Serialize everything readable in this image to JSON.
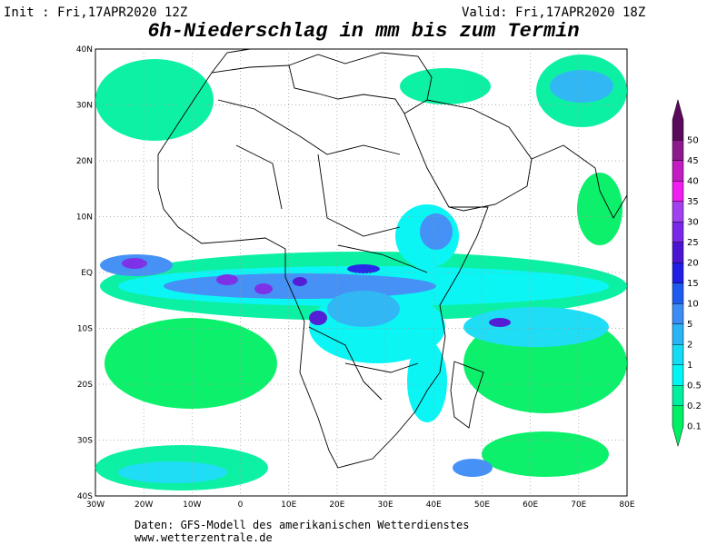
{
  "header": {
    "init": "Init : Fri,17APR2020 12Z",
    "valid": "Valid: Fri,17APR2020 18Z",
    "title": "6h-Niederschlag in mm bis zum Termin"
  },
  "map": {
    "lon_labels": [
      "30W",
      "20W",
      "10W",
      "0",
      "10E",
      "20E",
      "30E",
      "40E",
      "50E",
      "60E",
      "70E",
      "80E"
    ],
    "lat_labels": [
      "40N",
      "30N",
      "20N",
      "10N",
      "EQ",
      "10S",
      "20S",
      "30S",
      "40S"
    ]
  },
  "legend": {
    "items": [
      {
        "label": "50",
        "color": "#5a0a5a"
      },
      {
        "label": "45",
        "color": "#8c1a8c"
      },
      {
        "label": "40",
        "color": "#c21cc2"
      },
      {
        "label": "35",
        "color": "#f01ef0"
      },
      {
        "label": "30",
        "color": "#a040f0"
      },
      {
        "label": "25",
        "color": "#7828e6"
      },
      {
        "label": "20",
        "color": "#4b14d2"
      },
      {
        "label": "15",
        "color": "#1e1ee6"
      },
      {
        "label": "10",
        "color": "#1e5af0"
      },
      {
        "label": "5",
        "color": "#3c8cf5"
      },
      {
        "label": "2",
        "color": "#28b4f5"
      },
      {
        "label": "1",
        "color": "#14dcf5"
      },
      {
        "label": "0.5",
        "color": "#00f5f5"
      },
      {
        "label": "0.2",
        "color": "#00f0a0"
      },
      {
        "label": "0.1",
        "color": "#00f064"
      }
    ]
  },
  "footer": {
    "line1": "Daten: GFS-Modell des amerikanischen Wetterdienstes",
    "line2": "www.wetterzentrale.de"
  }
}
